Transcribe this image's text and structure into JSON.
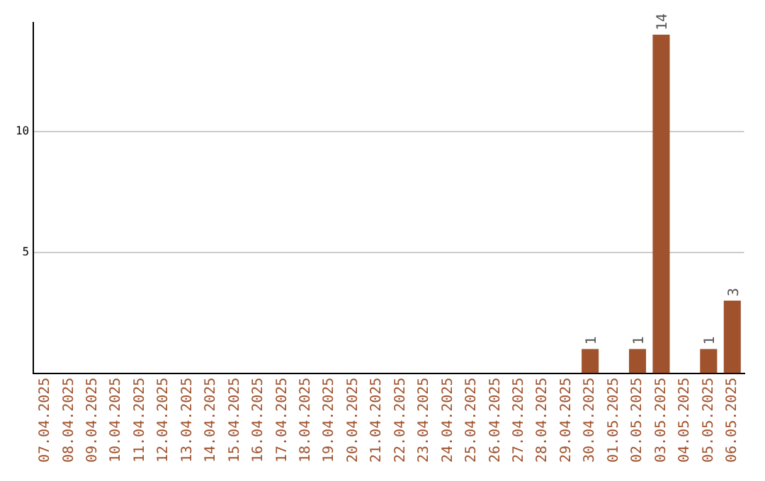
{
  "chart_data": {
    "type": "bar",
    "categories": [
      "07.04.2025",
      "08.04.2025",
      "09.04.2025",
      "10.04.2025",
      "11.04.2025",
      "12.04.2025",
      "13.04.2025",
      "14.04.2025",
      "15.04.2025",
      "16.04.2025",
      "17.04.2025",
      "18.04.2025",
      "19.04.2025",
      "20.04.2025",
      "21.04.2025",
      "22.04.2025",
      "23.04.2025",
      "24.04.2025",
      "25.04.2025",
      "26.04.2025",
      "27.04.2025",
      "28.04.2025",
      "29.04.2025",
      "30.04.2025",
      "01.05.2025",
      "02.05.2025",
      "03.05.2025",
      "04.05.2025",
      "05.05.2025",
      "06.05.2025"
    ],
    "values": [
      0,
      0,
      0,
      0,
      0,
      0,
      0,
      0,
      0,
      0,
      0,
      0,
      0,
      0,
      0,
      0,
      0,
      0,
      0,
      0,
      0,
      0,
      0,
      1,
      0,
      1,
      14,
      0,
      1,
      3
    ],
    "value_labels": [
      null,
      null,
      null,
      null,
      null,
      null,
      null,
      null,
      null,
      null,
      null,
      null,
      null,
      null,
      null,
      null,
      null,
      null,
      null,
      null,
      null,
      null,
      null,
      "1",
      null,
      "1",
      "14",
      null,
      "1",
      "3"
    ],
    "color": "#a0522d",
    "ylim": [
      0,
      14.5
    ],
    "yticks": [
      5,
      10
    ],
    "grid": "y",
    "legend": false
  }
}
